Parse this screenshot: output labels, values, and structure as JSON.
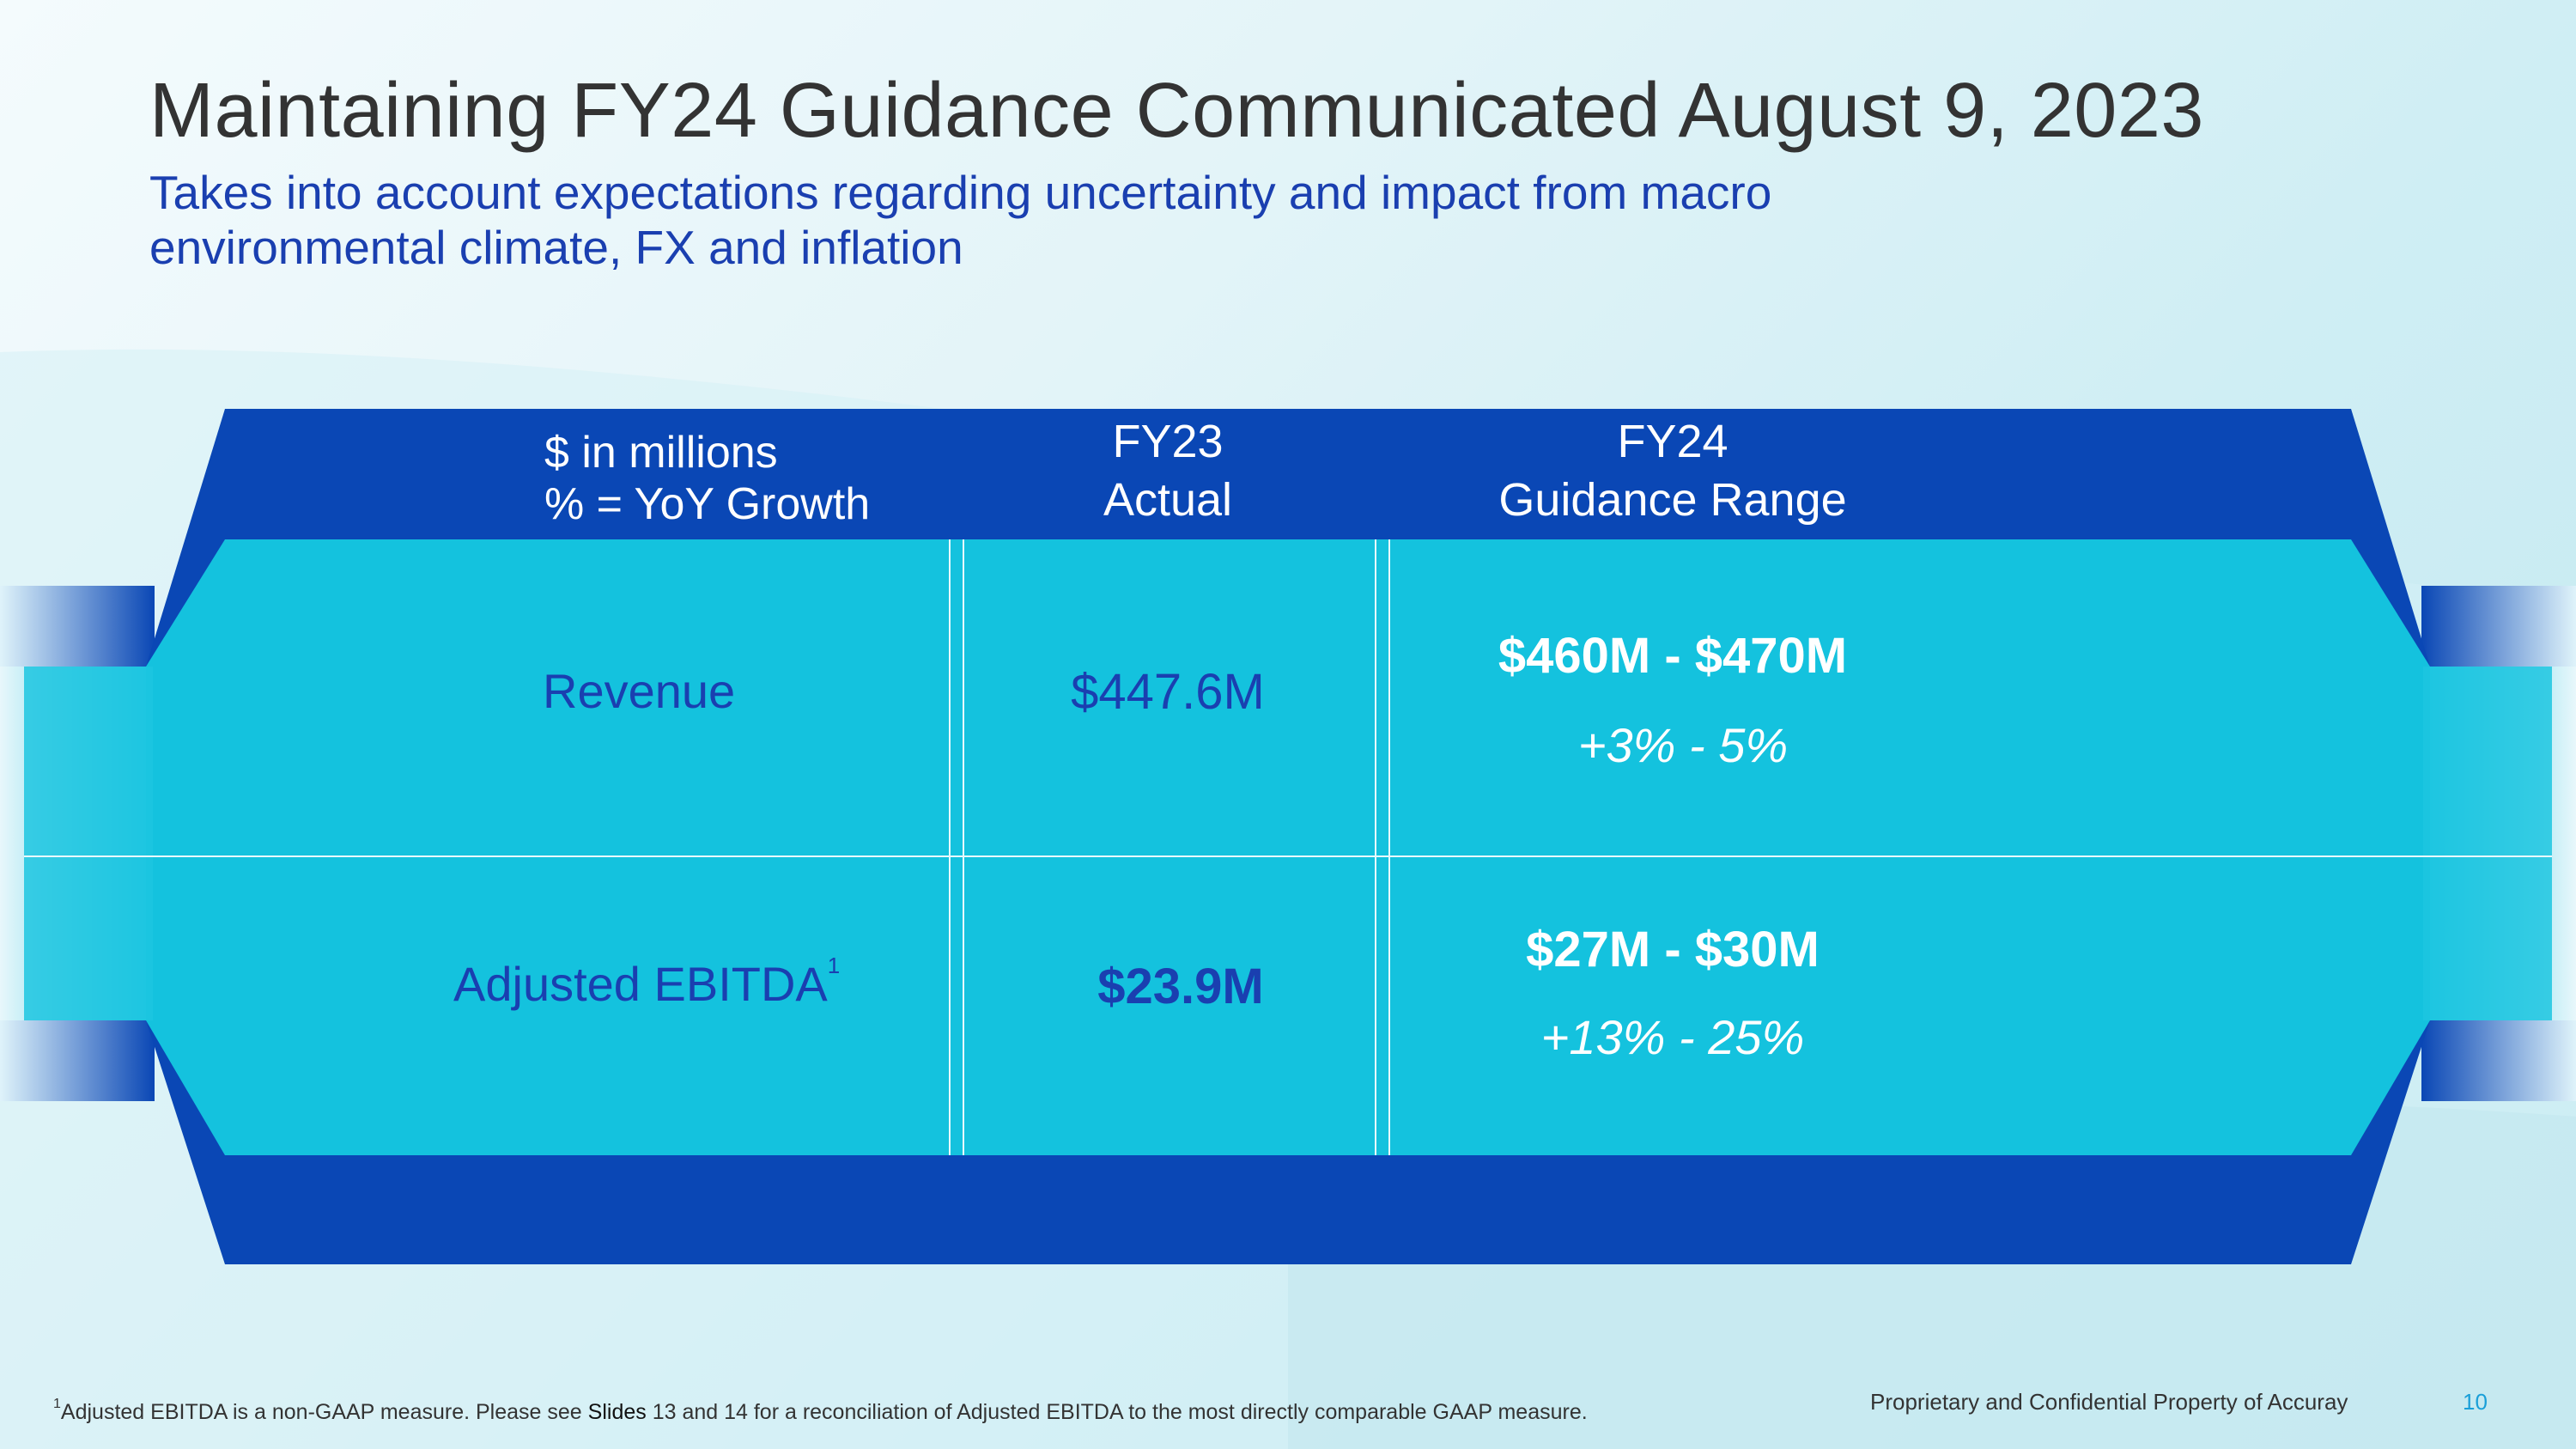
{
  "slide": {
    "title": "Maintaining FY24 Guidance Communicated August 9, 2023",
    "subtitle": "Takes into account expectations regarding uncertainty and impact from macro environmental climate, FX and inflation"
  },
  "table": {
    "units_line1": "$ in millions",
    "units_line2": "% = YoY Growth",
    "col_actual_line1": "FY23",
    "col_actual_line2": "Actual",
    "col_guidance_line1": "FY24",
    "col_guidance_line2": "Guidance Range",
    "rows": [
      {
        "label": "Revenue",
        "footnote_mark": "",
        "actual": "$447.6M",
        "range": "$460M - $470M",
        "growth": "+3% - 5%"
      },
      {
        "label": "Adjusted EBITDA",
        "footnote_mark": "1",
        "actual": "$23.9M",
        "range": "$27M - $30M",
        "growth": "+13% - 25%"
      }
    ]
  },
  "footer": {
    "footnote_mark": "1",
    "footnote_part1": "Adjusted EBITDA is a non-GAAP measure.  Please see ",
    "footnote_slides": "Slides",
    "footnote_part2": " 13 and 14 for a reconciliation of Adjusted EBITDA to the most directly comparable GAAP measure.",
    "proprietary": "Proprietary and Confidential Property of Accuray",
    "page_number": "10"
  },
  "colors": {
    "dark_blue": "#0a47b5",
    "cyan": "#14c2de",
    "title_text": "#333333",
    "subtitle_text": "#1a3fb0"
  }
}
